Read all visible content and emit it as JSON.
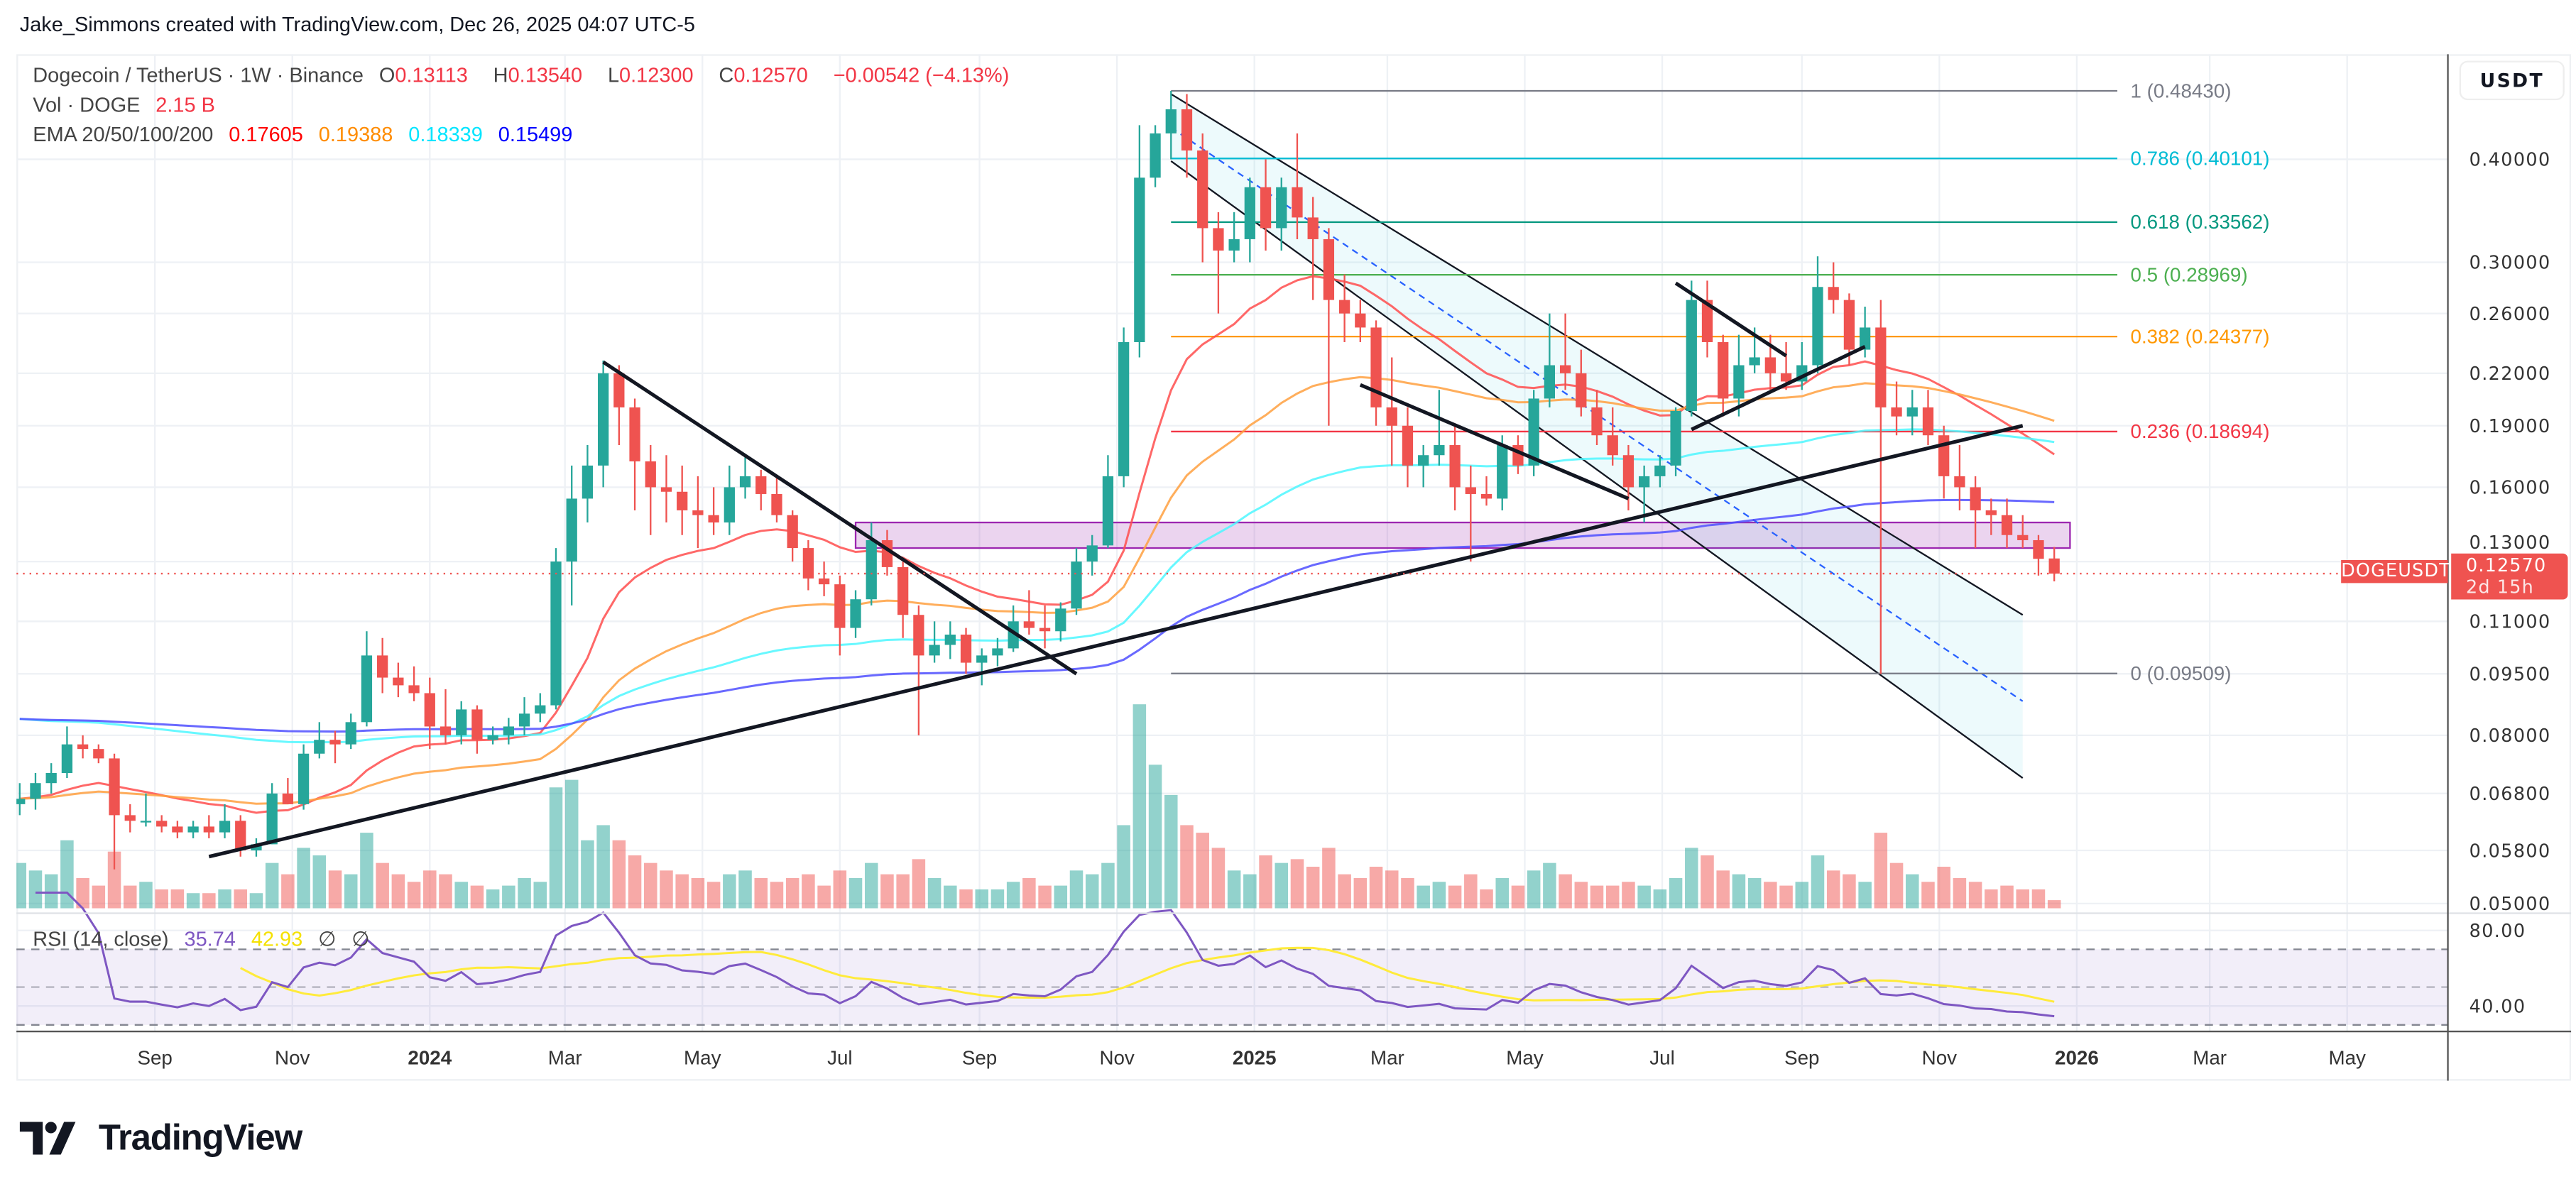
{
  "header": {
    "credit": "Jake_Simmons created with TradingView.com, Dec 26, 2025 04:07 UTC-5"
  },
  "legend": {
    "symbol": "Dogecoin / TetherUS · 1W · Binance",
    "open_label": "O",
    "open": "0.13113",
    "high_label": "H",
    "high": "0.13540",
    "low_label": "L",
    "low": "0.12300",
    "close_label": "C",
    "close": "0.12570",
    "change": "−0.00542 (−4.13%)",
    "vol_label": "Vol · DOGE",
    "vol_value": "2.15 B",
    "ema_label": "EMA 20/50/100/200",
    "ema_values": [
      "0.17605",
      "0.19388",
      "0.18339",
      "0.15499"
    ],
    "rsi_label": "RSI (14, close)",
    "rsi_value": "35.74",
    "rsi_ma_value": "42.93",
    "rsi_extra": [
      "∅",
      "∅"
    ]
  },
  "price_axis": {
    "currency_button": "USDT",
    "ticks": [
      "0.40000",
      "0.30000",
      "0.26000",
      "0.22000",
      "0.19000",
      "0.16000",
      "0.13000",
      "0.11000",
      "0.09500",
      "0.08000",
      "0.06800",
      "0.05800",
      "0.05000"
    ],
    "last_price_label": "0.12570",
    "countdown": "2d 15h",
    "symbol_tag": "DOGEUSDT"
  },
  "rsi_axis": {
    "ticks": [
      "80.00",
      "40.00"
    ]
  },
  "time_axis": {
    "labels": [
      {
        "text": "Sep",
        "date": "2023-09-01"
      },
      {
        "text": "Nov",
        "date": "2023-11-01"
      },
      {
        "text": "2024",
        "date": "2024-01-01",
        "bold": true
      },
      {
        "text": "Mar",
        "date": "2024-03-01"
      },
      {
        "text": "May",
        "date": "2024-05-01"
      },
      {
        "text": "Jul",
        "date": "2024-07-01"
      },
      {
        "text": "Sep",
        "date": "2024-09-01"
      },
      {
        "text": "Nov",
        "date": "2024-11-01"
      },
      {
        "text": "2025",
        "date": "2025-01-01",
        "bold": true
      },
      {
        "text": "Mar",
        "date": "2025-03-01"
      },
      {
        "text": "May",
        "date": "2025-05-01"
      },
      {
        "text": "Jul",
        "date": "2025-07-01"
      },
      {
        "text": "Sep",
        "date": "2025-09-01"
      },
      {
        "text": "Nov",
        "date": "2025-11-01"
      },
      {
        "text": "2026",
        "date": "2026-01-01",
        "bold": true
      },
      {
        "text": "Mar",
        "date": "2026-03-01"
      },
      {
        "text": "May",
        "date": "2026-05-01"
      }
    ]
  },
  "footer": {
    "logo_text": "TradingView"
  },
  "colors": {
    "up": "#26a69a",
    "down": "#ef5350",
    "ema20": "#ff4d4d",
    "ema50": "#ffa040",
    "ema100": "#4df7ff",
    "ema200": "#4f4fff",
    "rsi": "#7e57c2",
    "rsi_ma": "#ffeb3b"
  },
  "chart_data": {
    "type": "candlestick",
    "scale": "log",
    "timeframe": "1W",
    "ylim": [
      0.05,
      0.5
    ],
    "grid": true,
    "candle_columns": [
      "week",
      "open",
      "high",
      "low",
      "close",
      "volume_billion"
    ],
    "candles": [
      [
        "2023-07-03",
        0.066,
        0.07,
        0.064,
        0.067,
        12
      ],
      [
        "2023-07-10",
        0.067,
        0.072,
        0.065,
        0.07,
        10
      ],
      [
        "2023-07-17",
        0.07,
        0.074,
        0.068,
        0.072,
        9
      ],
      [
        "2023-07-24",
        0.072,
        0.082,
        0.071,
        0.078,
        18
      ],
      [
        "2023-07-31",
        0.078,
        0.08,
        0.075,
        0.077,
        8
      ],
      [
        "2023-08-07",
        0.077,
        0.078,
        0.074,
        0.075,
        6
      ],
      [
        "2023-08-14",
        0.075,
        0.076,
        0.055,
        0.064,
        15
      ],
      [
        "2023-08-21",
        0.064,
        0.066,
        0.061,
        0.063,
        6
      ],
      [
        "2023-08-28",
        0.063,
        0.068,
        0.062,
        0.063,
        7
      ],
      [
        "2023-09-04",
        0.063,
        0.064,
        0.061,
        0.062,
        5
      ],
      [
        "2023-09-11",
        0.062,
        0.063,
        0.06,
        0.061,
        5
      ],
      [
        "2023-09-18",
        0.061,
        0.063,
        0.06,
        0.062,
        4
      ],
      [
        "2023-09-25",
        0.062,
        0.064,
        0.06,
        0.061,
        4
      ],
      [
        "2023-10-02",
        0.061,
        0.066,
        0.06,
        0.063,
        5
      ],
      [
        "2023-10-09",
        0.063,
        0.064,
        0.057,
        0.058,
        5
      ],
      [
        "2023-10-16",
        0.058,
        0.06,
        0.057,
        0.059,
        4
      ],
      [
        "2023-10-23",
        0.059,
        0.07,
        0.059,
        0.068,
        12
      ],
      [
        "2023-10-30",
        0.068,
        0.071,
        0.066,
        0.066,
        9
      ],
      [
        "2023-11-06",
        0.066,
        0.078,
        0.065,
        0.076,
        16
      ],
      [
        "2023-11-13",
        0.076,
        0.083,
        0.075,
        0.079,
        14
      ],
      [
        "2023-11-20",
        0.079,
        0.081,
        0.074,
        0.078,
        10
      ],
      [
        "2023-11-27",
        0.078,
        0.085,
        0.077,
        0.083,
        9
      ],
      [
        "2023-12-04",
        0.083,
        0.107,
        0.082,
        0.1,
        20
      ],
      [
        "2023-12-11",
        0.1,
        0.105,
        0.09,
        0.094,
        12
      ],
      [
        "2023-12-18",
        0.094,
        0.098,
        0.089,
        0.092,
        9
      ],
      [
        "2023-12-25",
        0.092,
        0.097,
        0.088,
        0.09,
        7
      ],
      [
        "2024-01-01",
        0.09,
        0.094,
        0.077,
        0.082,
        10
      ],
      [
        "2024-01-08",
        0.082,
        0.091,
        0.078,
        0.08,
        9
      ],
      [
        "2024-01-15",
        0.08,
        0.088,
        0.078,
        0.086,
        7
      ],
      [
        "2024-01-22",
        0.086,
        0.087,
        0.076,
        0.079,
        6
      ],
      [
        "2024-01-29",
        0.079,
        0.082,
        0.078,
        0.08,
        5
      ],
      [
        "2024-02-05",
        0.08,
        0.084,
        0.078,
        0.082,
        6
      ],
      [
        "2024-02-12",
        0.082,
        0.089,
        0.08,
        0.085,
        8
      ],
      [
        "2024-02-19",
        0.085,
        0.09,
        0.083,
        0.087,
        7
      ],
      [
        "2024-02-26",
        0.087,
        0.135,
        0.086,
        0.13,
        32
      ],
      [
        "2024-03-04",
        0.13,
        0.17,
        0.115,
        0.155,
        34
      ],
      [
        "2024-03-11",
        0.155,
        0.18,
        0.145,
        0.17,
        18
      ],
      [
        "2024-03-18",
        0.17,
        0.228,
        0.16,
        0.22,
        22
      ],
      [
        "2024-03-25",
        0.22,
        0.225,
        0.18,
        0.2,
        18
      ],
      [
        "2024-04-01",
        0.2,
        0.205,
        0.15,
        0.172,
        14
      ],
      [
        "2024-04-08",
        0.172,
        0.18,
        0.14,
        0.16,
        12
      ],
      [
        "2024-04-15",
        0.16,
        0.175,
        0.145,
        0.158,
        10
      ],
      [
        "2024-04-22",
        0.158,
        0.17,
        0.14,
        0.15,
        9
      ],
      [
        "2024-04-29",
        0.15,
        0.165,
        0.135,
        0.148,
        8
      ],
      [
        "2024-05-06",
        0.148,
        0.16,
        0.14,
        0.145,
        7
      ],
      [
        "2024-05-13",
        0.145,
        0.17,
        0.14,
        0.16,
        9
      ],
      [
        "2024-05-20",
        0.16,
        0.175,
        0.155,
        0.165,
        10
      ],
      [
        "2024-05-27",
        0.165,
        0.168,
        0.15,
        0.157,
        8
      ],
      [
        "2024-06-03",
        0.157,
        0.165,
        0.145,
        0.148,
        7
      ],
      [
        "2024-06-10",
        0.148,
        0.15,
        0.13,
        0.135,
        8
      ],
      [
        "2024-06-17",
        0.135,
        0.138,
        0.12,
        0.124,
        9
      ],
      [
        "2024-06-24",
        0.124,
        0.13,
        0.118,
        0.122,
        6
      ],
      [
        "2024-07-01",
        0.122,
        0.125,
        0.1,
        0.108,
        10
      ],
      [
        "2024-07-08",
        0.108,
        0.12,
        0.105,
        0.117,
        8
      ],
      [
        "2024-07-15",
        0.117,
        0.145,
        0.115,
        0.138,
        12
      ],
      [
        "2024-07-22",
        0.138,
        0.142,
        0.125,
        0.128,
        9
      ],
      [
        "2024-07-29",
        0.128,
        0.13,
        0.105,
        0.112,
        9
      ],
      [
        "2024-08-05",
        0.112,
        0.115,
        0.08,
        0.1,
        13
      ],
      [
        "2024-08-12",
        0.1,
        0.11,
        0.098,
        0.103,
        8
      ],
      [
        "2024-08-19",
        0.103,
        0.11,
        0.099,
        0.106,
        6
      ],
      [
        "2024-08-26",
        0.106,
        0.108,
        0.095,
        0.098,
        5
      ],
      [
        "2024-09-02",
        0.098,
        0.102,
        0.092,
        0.1,
        5
      ],
      [
        "2024-09-09",
        0.1,
        0.105,
        0.097,
        0.102,
        5
      ],
      [
        "2024-09-16",
        0.102,
        0.115,
        0.101,
        0.11,
        7
      ],
      [
        "2024-09-23",
        0.11,
        0.12,
        0.106,
        0.108,
        8
      ],
      [
        "2024-09-30",
        0.108,
        0.115,
        0.102,
        0.107,
        6
      ],
      [
        "2024-10-07",
        0.107,
        0.116,
        0.104,
        0.114,
        6
      ],
      [
        "2024-10-14",
        0.114,
        0.135,
        0.112,
        0.13,
        10
      ],
      [
        "2024-10-21",
        0.13,
        0.14,
        0.125,
        0.136,
        9
      ],
      [
        "2024-10-28",
        0.136,
        0.175,
        0.135,
        0.165,
        12
      ],
      [
        "2024-11-04",
        0.165,
        0.25,
        0.16,
        0.24,
        22
      ],
      [
        "2024-11-11",
        0.24,
        0.44,
        0.23,
        0.38,
        54
      ],
      [
        "2024-11-18",
        0.38,
        0.44,
        0.37,
        0.43,
        38
      ],
      [
        "2024-11-25",
        0.43,
        0.4843,
        0.4,
        0.46,
        30
      ],
      [
        "2024-12-02",
        0.46,
        0.48,
        0.38,
        0.41,
        22
      ],
      [
        "2024-12-09",
        0.41,
        0.43,
        0.3,
        0.33,
        20
      ],
      [
        "2024-12-16",
        0.33,
        0.345,
        0.26,
        0.31,
        16
      ],
      [
        "2024-12-23",
        0.31,
        0.345,
        0.3,
        0.32,
        10
      ],
      [
        "2024-12-30",
        0.32,
        0.38,
        0.3,
        0.37,
        9
      ],
      [
        "2025-01-06",
        0.37,
        0.4,
        0.31,
        0.33,
        14
      ],
      [
        "2025-01-13",
        0.33,
        0.38,
        0.31,
        0.37,
        12
      ],
      [
        "2025-01-20",
        0.37,
        0.43,
        0.32,
        0.34,
        13
      ],
      [
        "2025-01-27",
        0.34,
        0.36,
        0.27,
        0.32,
        11
      ],
      [
        "2025-02-03",
        0.32,
        0.33,
        0.19,
        0.27,
        16
      ],
      [
        "2025-02-10",
        0.27,
        0.29,
        0.24,
        0.26,
        9
      ],
      [
        "2025-02-17",
        0.26,
        0.27,
        0.24,
        0.25,
        8
      ],
      [
        "2025-02-24",
        0.25,
        0.255,
        0.19,
        0.2,
        11
      ],
      [
        "2025-03-03",
        0.2,
        0.23,
        0.17,
        0.19,
        10
      ],
      [
        "2025-03-10",
        0.19,
        0.2,
        0.16,
        0.17,
        8
      ],
      [
        "2025-03-17",
        0.17,
        0.18,
        0.16,
        0.175,
        6
      ],
      [
        "2025-03-24",
        0.175,
        0.21,
        0.17,
        0.18,
        7
      ],
      [
        "2025-03-31",
        0.18,
        0.19,
        0.15,
        0.16,
        6
      ],
      [
        "2025-04-07",
        0.16,
        0.17,
        0.13,
        0.157,
        9
      ],
      [
        "2025-04-14",
        0.157,
        0.165,
        0.152,
        0.155,
        5
      ],
      [
        "2025-04-21",
        0.155,
        0.185,
        0.15,
        0.18,
        8
      ],
      [
        "2025-04-28",
        0.18,
        0.185,
        0.166,
        0.17,
        6
      ],
      [
        "2025-05-05",
        0.17,
        0.21,
        0.165,
        0.205,
        10
      ],
      [
        "2025-05-12",
        0.205,
        0.26,
        0.2,
        0.225,
        12
      ],
      [
        "2025-05-19",
        0.225,
        0.26,
        0.21,
        0.22,
        9
      ],
      [
        "2025-05-26",
        0.22,
        0.235,
        0.195,
        0.2,
        7
      ],
      [
        "2025-06-02",
        0.2,
        0.21,
        0.18,
        0.185,
        6
      ],
      [
        "2025-06-09",
        0.185,
        0.2,
        0.17,
        0.175,
        6
      ],
      [
        "2025-06-16",
        0.175,
        0.18,
        0.15,
        0.16,
        7
      ],
      [
        "2025-06-23",
        0.16,
        0.17,
        0.145,
        0.165,
        6
      ],
      [
        "2025-06-30",
        0.165,
        0.175,
        0.16,
        0.17,
        5
      ],
      [
        "2025-07-07",
        0.17,
        0.2,
        0.165,
        0.198,
        8
      ],
      [
        "2025-07-14",
        0.198,
        0.285,
        0.195,
        0.27,
        16
      ],
      [
        "2025-07-21",
        0.27,
        0.285,
        0.23,
        0.24,
        14
      ],
      [
        "2025-07-28",
        0.24,
        0.245,
        0.195,
        0.205,
        10
      ],
      [
        "2025-08-04",
        0.205,
        0.245,
        0.195,
        0.225,
        9
      ],
      [
        "2025-08-11",
        0.225,
        0.25,
        0.22,
        0.23,
        8
      ],
      [
        "2025-08-18",
        0.23,
        0.245,
        0.21,
        0.22,
        7
      ],
      [
        "2025-08-25",
        0.22,
        0.24,
        0.21,
        0.215,
        6
      ],
      [
        "2025-09-01",
        0.215,
        0.24,
        0.21,
        0.225,
        7
      ],
      [
        "2025-09-08",
        0.225,
        0.305,
        0.22,
        0.28,
        14
      ],
      [
        "2025-09-15",
        0.28,
        0.3,
        0.26,
        0.27,
        10
      ],
      [
        "2025-09-22",
        0.27,
        0.275,
        0.225,
        0.235,
        9
      ],
      [
        "2025-09-29",
        0.235,
        0.265,
        0.23,
        0.25,
        7
      ],
      [
        "2025-10-06",
        0.25,
        0.27,
        0.095,
        0.2,
        20
      ],
      [
        "2025-10-13",
        0.2,
        0.215,
        0.185,
        0.195,
        12
      ],
      [
        "2025-10-20",
        0.195,
        0.21,
        0.185,
        0.2,
        9
      ],
      [
        "2025-10-27",
        0.2,
        0.21,
        0.18,
        0.185,
        7
      ],
      [
        "2025-11-03",
        0.185,
        0.19,
        0.155,
        0.165,
        11
      ],
      [
        "2025-11-10",
        0.165,
        0.18,
        0.15,
        0.16,
        8
      ],
      [
        "2025-11-17",
        0.16,
        0.165,
        0.135,
        0.15,
        7
      ],
      [
        "2025-11-24",
        0.15,
        0.155,
        0.14,
        0.148,
        5
      ],
      [
        "2025-12-01",
        0.148,
        0.155,
        0.135,
        0.14,
        6
      ],
      [
        "2025-12-08",
        0.14,
        0.148,
        0.135,
        0.138,
        5
      ],
      [
        "2025-12-15",
        0.138,
        0.14,
        0.125,
        0.131,
        5
      ],
      [
        "2025-12-22",
        0.13113,
        0.1354,
        0.123,
        0.1257,
        2.15
      ]
    ],
    "last_price": 0.1257,
    "indicators": {
      "ema_periods": [
        20,
        50,
        100,
        200
      ],
      "rsi_period": 14,
      "rsi_ma_period": 14,
      "rsi_levels": [
        70,
        50,
        30
      ]
    },
    "fibonacci": {
      "from_date": "2024-11-25",
      "to_date": "2026-01-19",
      "levels": [
        {
          "label": "1 (0.48430)",
          "price": 0.4843,
          "color": "#787b86"
        },
        {
          "label": "0.786 (0.40101)",
          "price": 0.40101,
          "color": "#00bcd4"
        },
        {
          "label": "0.618 (0.33562)",
          "price": 0.33562,
          "color": "#089981"
        },
        {
          "label": "0.5 (0.28969)",
          "price": 0.28969,
          "color": "#4caf50"
        },
        {
          "label": "0.382 (0.24377)",
          "price": 0.24377,
          "color": "#ff9800"
        },
        {
          "label": "0.236 (0.18694)",
          "price": 0.18694,
          "color": "#f23645"
        },
        {
          "label": "0 (0.09509)",
          "price": 0.09509,
          "color": "#787b86"
        }
      ]
    },
    "trendlines": [
      {
        "from": [
          "2024-03-18",
          0.227
        ],
        "to": [
          "2024-10-14",
          0.095
        ]
      },
      {
        "from": [
          "2023-09-25",
          0.057
        ],
        "to": [
          "2025-12-08",
          0.19
        ]
      },
      {
        "from": [
          "2025-02-17",
          0.213
        ],
        "to": [
          "2025-06-16",
          0.155
        ]
      },
      {
        "from": [
          "2025-07-07",
          0.283
        ],
        "to": [
          "2025-08-25",
          0.231
        ]
      },
      {
        "from": [
          "2025-07-14",
          0.188
        ],
        "to": [
          "2025-09-29",
          0.237
        ]
      }
    ],
    "channel": {
      "upper": {
        "from": [
          "2024-11-25",
          0.48
        ],
        "to": [
          "2025-12-08",
          0.112
        ]
      },
      "middle": {
        "from": [
          "2024-11-25",
          0.437
        ],
        "to": [
          "2025-12-08",
          0.088
        ]
      },
      "lower": {
        "from": [
          "2024-11-25",
          0.398
        ],
        "to": [
          "2025-12-08",
          0.071
        ]
      },
      "color": "#00bcd4"
    },
    "zone": {
      "from_date": "2024-07-08",
      "to_date": "2025-12-29",
      "top": 0.145,
      "bottom": 0.135,
      "color": "#9c27b0"
    }
  }
}
